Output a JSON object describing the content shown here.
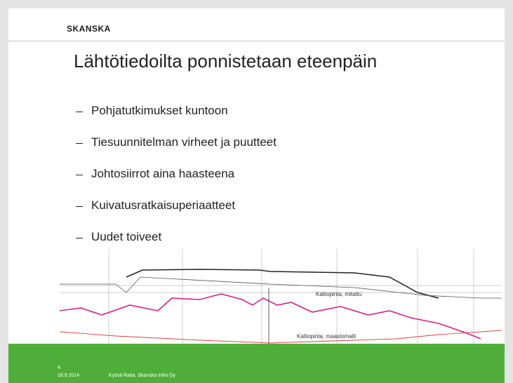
{
  "header": {
    "logo": "SKANSKA"
  },
  "title": "Lähtötiedoilta ponnistetaan eteenpäin",
  "bullets": [
    "Pohjatutkimukset kuntoon",
    "Tiesuunnitelman virheet ja puutteet",
    "Johtosiirrot aina haasteena",
    "Kuivatusratkaisuperiaatteet",
    "Uudet toiveet"
  ],
  "drawing": {
    "labels": [
      "Kalliopinta, mitattu",
      "Kalliopinta, maastomalli"
    ]
  },
  "footer": {
    "page": "4",
    "date": "18.9.2014",
    "author": "Kyösti Ratia, Skanska Infra Oy"
  }
}
